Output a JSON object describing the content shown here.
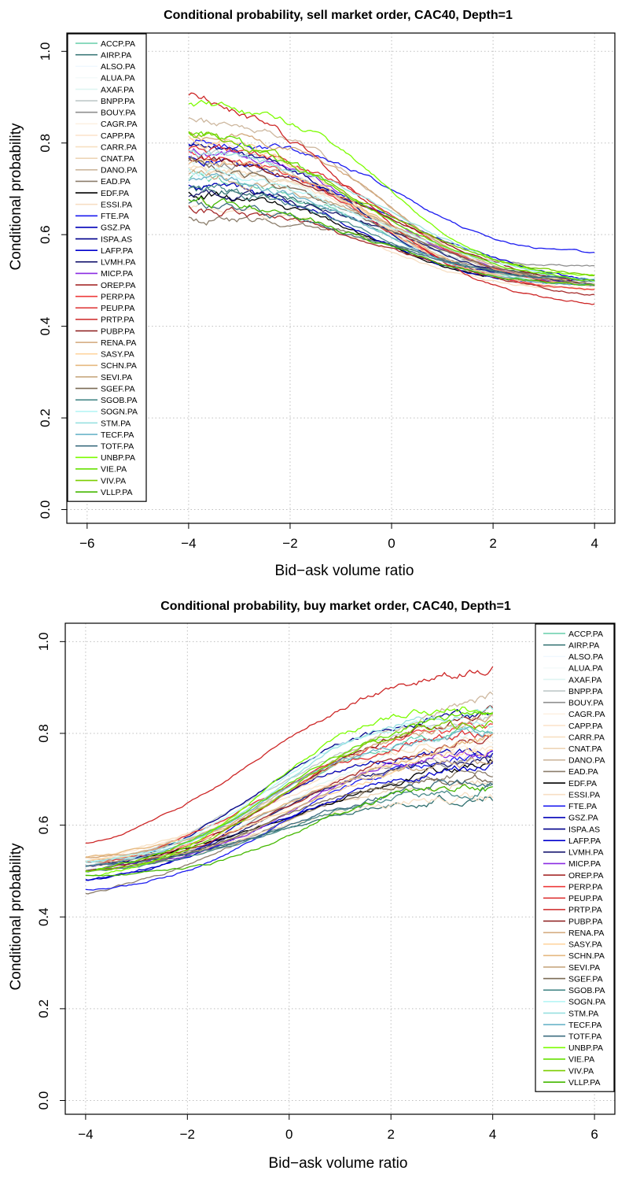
{
  "chart_data": [
    {
      "type": "line",
      "title": "Conditional probability, sell market order, CAC40, Depth=1",
      "xlabel": "Bid−ask volume ratio",
      "ylabel": "Conditional probability",
      "xlim": [
        -6.4,
        4.4
      ],
      "ylim": [
        -0.03,
        1.04
      ],
      "xticks": [
        -6,
        -4,
        -2,
        0,
        2,
        4
      ],
      "xtick_labels": [
        "−6",
        "−4",
        "−2",
        "0",
        "2",
        "4"
      ],
      "yticks": [
        0.0,
        0.2,
        0.4,
        0.6,
        0.8,
        1.0
      ],
      "ytick_labels": [
        "0.0",
        "0.2",
        "0.4",
        "0.6",
        "0.8",
        "1.0"
      ],
      "grid": true,
      "legend_position": "top-left",
      "x_range": [
        -4,
        4
      ],
      "direction": "decreasing",
      "series": [
        {
          "name": "ACCP.PA",
          "color": "#66cdaa",
          "start": 0.72,
          "end": 0.49
        },
        {
          "name": "AIRP.PA",
          "color": "#2f6f6f",
          "start": 0.7,
          "end": 0.5
        },
        {
          "name": "ALSO.PA",
          "color": "#f0f8ff",
          "start": 0.74,
          "end": 0.49
        },
        {
          "name": "ALUA.PA",
          "color": "#f5fbfb",
          "start": 0.73,
          "end": 0.5
        },
        {
          "name": "AXAF.PA",
          "color": "#dff5f2",
          "start": 0.76,
          "end": 0.49
        },
        {
          "name": "BNPP.PA",
          "color": "#bfc9c9",
          "start": 0.79,
          "end": 0.5
        },
        {
          "name": "BOUY.PA",
          "color": "#8f8f8f",
          "start": 0.76,
          "end": 0.53
        },
        {
          "name": "CAGR.PA",
          "color": "#fdf1e3",
          "start": 0.78,
          "end": 0.49
        },
        {
          "name": "CAPP.PA",
          "color": "#fbe4cd",
          "start": 0.81,
          "end": 0.48
        },
        {
          "name": "CARR.PA",
          "color": "#f7e0c2",
          "start": 0.75,
          "end": 0.49
        },
        {
          "name": "CNAT.PA",
          "color": "#eed5b7",
          "start": 0.74,
          "end": 0.48
        },
        {
          "name": "DANO.PA",
          "color": "#cdb79e",
          "start": 0.85,
          "end": 0.49
        },
        {
          "name": "EAD.PA",
          "color": "#8b7d6b",
          "start": 0.64,
          "end": 0.5
        },
        {
          "name": "EDF.PA",
          "color": "#000000",
          "start": 0.69,
          "end": 0.49
        },
        {
          "name": "ESSI.PA",
          "color": "#f7dfc4",
          "start": 0.66,
          "end": 0.48
        },
        {
          "name": "FTE.PA",
          "color": "#1c1cf0",
          "start": 0.8,
          "end": 0.56
        },
        {
          "name": "GSZ.PA",
          "color": "#0000b8",
          "start": 0.71,
          "end": 0.49
        },
        {
          "name": "ISPA.AS",
          "color": "#00008b",
          "start": 0.79,
          "end": 0.5
        },
        {
          "name": "LAFP.PA",
          "color": "#0000cd",
          "start": 0.77,
          "end": 0.5
        },
        {
          "name": "LVMH.PA",
          "color": "#191970",
          "start": 0.69,
          "end": 0.49
        },
        {
          "name": "MICP.PA",
          "color": "#8a2be2",
          "start": 0.79,
          "end": 0.49
        },
        {
          "name": "OREP.PA",
          "color": "#a52a2a",
          "start": 0.66,
          "end": 0.47
        },
        {
          "name": "PERP.PA",
          "color": "#ee3b3b",
          "start": 0.78,
          "end": 0.48
        },
        {
          "name": "PEUP.PA",
          "color": "#dd3030",
          "start": 0.79,
          "end": 0.49
        },
        {
          "name": "PRTP.PA",
          "color": "#cd2626",
          "start": 0.9,
          "end": 0.45
        },
        {
          "name": "PUBP.PA",
          "color": "#8b1a1a",
          "start": 0.77,
          "end": 0.49
        },
        {
          "name": "RENA.PA",
          "color": "#d2a679",
          "start": 0.82,
          "end": 0.49
        },
        {
          "name": "SASY.PA",
          "color": "#ffd39b",
          "start": 0.81,
          "end": 0.49
        },
        {
          "name": "SCHN.PA",
          "color": "#e6b980",
          "start": 0.76,
          "end": 0.49
        },
        {
          "name": "SEVI.PA",
          "color": "#c8a880",
          "start": 0.73,
          "end": 0.49
        },
        {
          "name": "SGEF.PA",
          "color": "#7a6a55",
          "start": 0.76,
          "end": 0.49
        },
        {
          "name": "SGOB.PA",
          "color": "#4a8a8a",
          "start": 0.7,
          "end": 0.5
        },
        {
          "name": "SOGN.PA",
          "color": "#b8f5f5",
          "start": 0.74,
          "end": 0.5
        },
        {
          "name": "STM.PA",
          "color": "#98e0e0",
          "start": 0.78,
          "end": 0.5
        },
        {
          "name": "TECF.PA",
          "color": "#6ab4c8",
          "start": 0.72,
          "end": 0.49
        },
        {
          "name": "TOTF.PA",
          "color": "#3d6e80",
          "start": 0.67,
          "end": 0.5
        },
        {
          "name": "UNBP.PA",
          "color": "#7cfc00",
          "start": 0.88,
          "end": 0.51
        },
        {
          "name": "VIE.PA",
          "color": "#66e000",
          "start": 0.83,
          "end": 0.5
        },
        {
          "name": "VIV.PA",
          "color": "#7ccd00",
          "start": 0.82,
          "end": 0.51
        },
        {
          "name": "VLLP.PA",
          "color": "#44b800",
          "start": 0.67,
          "end": 0.49
        }
      ]
    },
    {
      "type": "line",
      "title": "Conditional probability, buy market order, CAC40, Depth=1",
      "xlabel": "Bid−ask volume ratio",
      "ylabel": "Conditional probability",
      "xlim": [
        -4.4,
        6.4
      ],
      "ylim": [
        -0.03,
        1.04
      ],
      "xticks": [
        -4,
        -2,
        0,
        2,
        4,
        6
      ],
      "xtick_labels": [
        "−4",
        "−2",
        "0",
        "2",
        "4",
        "6"
      ],
      "yticks": [
        0.0,
        0.2,
        0.4,
        0.6,
        0.8,
        1.0
      ],
      "ytick_labels": [
        "0.0",
        "0.2",
        "0.4",
        "0.6",
        "0.8",
        "1.0"
      ],
      "grid": true,
      "legend_position": "top-right",
      "x_range": [
        -4,
        4
      ],
      "direction": "increasing",
      "series": [
        {
          "name": "ACCP.PA",
          "color": "#66cdaa",
          "start": 0.52,
          "end": 0.81
        },
        {
          "name": "AIRP.PA",
          "color": "#2f6f6f",
          "start": 0.51,
          "end": 0.66
        },
        {
          "name": "ALSO.PA",
          "color": "#f0f8ff",
          "start": 0.5,
          "end": 0.79
        },
        {
          "name": "ALUA.PA",
          "color": "#f5fbfb",
          "start": 0.51,
          "end": 0.77
        },
        {
          "name": "AXAF.PA",
          "color": "#dff5f2",
          "start": 0.51,
          "end": 0.81
        },
        {
          "name": "BNPP.PA",
          "color": "#bfc9c9",
          "start": 0.51,
          "end": 0.83
        },
        {
          "name": "BOUY.PA",
          "color": "#8f8f8f",
          "start": 0.5,
          "end": 0.74
        },
        {
          "name": "CAGR.PA",
          "color": "#fdf1e3",
          "start": 0.52,
          "end": 0.78
        },
        {
          "name": "CAPP.PA",
          "color": "#fbe4cd",
          "start": 0.52,
          "end": 0.76
        },
        {
          "name": "CARR.PA",
          "color": "#f7e0c2",
          "start": 0.53,
          "end": 0.8
        },
        {
          "name": "CNAT.PA",
          "color": "#eed5b7",
          "start": 0.5,
          "end": 0.7
        },
        {
          "name": "DANO.PA",
          "color": "#cdb79e",
          "start": 0.52,
          "end": 0.88
        },
        {
          "name": "EAD.PA",
          "color": "#8b7d6b",
          "start": 0.45,
          "end": 0.72
        },
        {
          "name": "EDF.PA",
          "color": "#000000",
          "start": 0.51,
          "end": 0.74
        },
        {
          "name": "ESSI.PA",
          "color": "#f7dfc4",
          "start": 0.51,
          "end": 0.66
        },
        {
          "name": "FTE.PA",
          "color": "#1c1cf0",
          "start": 0.46,
          "end": 0.75
        },
        {
          "name": "GSZ.PA",
          "color": "#0000b8",
          "start": 0.48,
          "end": 0.76
        },
        {
          "name": "ISPA.AS",
          "color": "#00008b",
          "start": 0.5,
          "end": 0.84
        },
        {
          "name": "LAFP.PA",
          "color": "#0000cd",
          "start": 0.48,
          "end": 0.73
        },
        {
          "name": "LVMH.PA",
          "color": "#191970",
          "start": 0.51,
          "end": 0.74
        },
        {
          "name": "MICP.PA",
          "color": "#8a2be2",
          "start": 0.51,
          "end": 0.76
        },
        {
          "name": "OREP.PA",
          "color": "#a52a2a",
          "start": 0.5,
          "end": 0.79
        },
        {
          "name": "PERP.PA",
          "color": "#ee3b3b",
          "start": 0.52,
          "end": 0.81
        },
        {
          "name": "PEUP.PA",
          "color": "#dd3030",
          "start": 0.51,
          "end": 0.8
        },
        {
          "name": "PRTP.PA",
          "color": "#cd2626",
          "start": 0.56,
          "end": 0.94
        },
        {
          "name": "PUBP.PA",
          "color": "#8b1a1a",
          "start": 0.5,
          "end": 0.84
        },
        {
          "name": "RENA.PA",
          "color": "#d2a679",
          "start": 0.53,
          "end": 0.82
        },
        {
          "name": "SASY.PA",
          "color": "#ffd39b",
          "start": 0.52,
          "end": 0.77
        },
        {
          "name": "SCHN.PA",
          "color": "#e6b980",
          "start": 0.53,
          "end": 0.79
        },
        {
          "name": "SEVI.PA",
          "color": "#c8a880",
          "start": 0.52,
          "end": 0.74
        },
        {
          "name": "SGEF.PA",
          "color": "#7a6a55",
          "start": 0.5,
          "end": 0.7
        },
        {
          "name": "SGOB.PA",
          "color": "#4a8a8a",
          "start": 0.5,
          "end": 0.68
        },
        {
          "name": "SOGN.PA",
          "color": "#b8f5f5",
          "start": 0.52,
          "end": 0.82
        },
        {
          "name": "STM.PA",
          "color": "#98e0e0",
          "start": 0.52,
          "end": 0.85
        },
        {
          "name": "TECF.PA",
          "color": "#6ab4c8",
          "start": 0.51,
          "end": 0.8
        },
        {
          "name": "TOTF.PA",
          "color": "#3d6e80",
          "start": 0.51,
          "end": 0.7
        },
        {
          "name": "UNBP.PA",
          "color": "#7cfc00",
          "start": 0.49,
          "end": 0.86
        },
        {
          "name": "VIE.PA",
          "color": "#66e000",
          "start": 0.5,
          "end": 0.85
        },
        {
          "name": "VIV.PA",
          "color": "#7ccd00",
          "start": 0.5,
          "end": 0.82
        },
        {
          "name": "VLLP.PA",
          "color": "#44b800",
          "start": 0.49,
          "end": 0.68
        }
      ]
    }
  ]
}
